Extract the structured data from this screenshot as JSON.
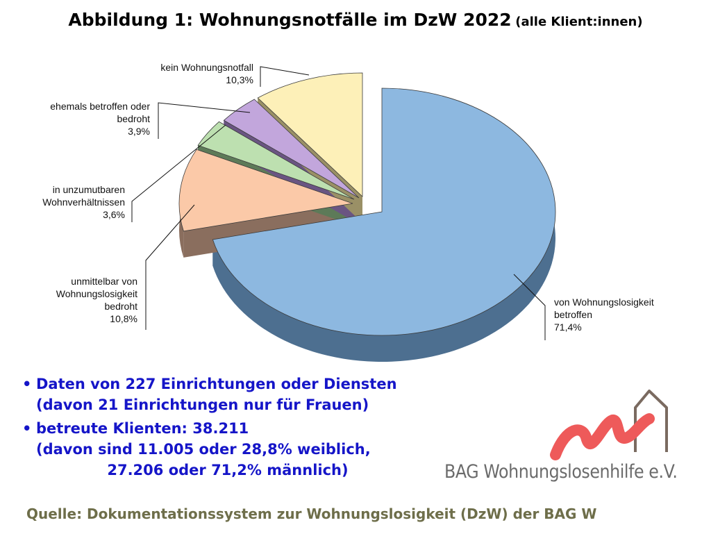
{
  "title": {
    "main": "Abbildung 1:  Wohnungsnotfälle im DzW 2022",
    "sub": "(alle Klient:innen)"
  },
  "chart_data": {
    "type": "pie",
    "slices": [
      {
        "label_lines": [
          "von Wohnungslosigkeit",
          "betroffen",
          "71,4%"
        ],
        "value": 71.4,
        "color": "#8db8e0",
        "side": "#4d6f90"
      },
      {
        "label_lines": [
          "unmittelbar von",
          "Wohnungslosigkeit",
          "bedroht",
          "10,8%"
        ],
        "value": 10.8,
        "color": "#fbc9a8",
        "side": "#8a6e5e"
      },
      {
        "label_lines": [
          "in unzumutbaren",
          "Wohnverhältnissen",
          "3,6%"
        ],
        "value": 3.6,
        "color": "#bde0b0",
        "side": "#5d7a58"
      },
      {
        "label_lines": [
          "ehemals betroffen oder",
          "bedroht",
          "3,9%"
        ],
        "value": 3.9,
        "color": "#c2a6dc",
        "side": "#6a5582"
      },
      {
        "label_lines": [
          "kein Wohnungsnotfall",
          "10,3%"
        ],
        "value": 10.3,
        "color": "#fdf0b8",
        "side": "#9a9066"
      }
    ]
  },
  "bullets": [
    {
      "line1": "Daten von 227 Einrichtungen oder Diensten",
      "line2": "(davon 21 Einrichtungen nur für Frauen)"
    },
    {
      "line1": "betreute Klienten: 38.211",
      "line2": "(davon sind 11.005 oder 28,8% weiblich,",
      "line3": "              27.206 oder 71,2% männlich)"
    }
  ],
  "logo": {
    "text": "BAG Wohnungslosenhilfe e.V."
  },
  "source": "Quelle:  Dokumentationssystem zur Wohnungslosigkeit (DzW) der BAG W",
  "colors": {
    "bullet_text": "#1515c8",
    "source_text": "#6e6e4a",
    "logo_swoosh": "#ee5a5a",
    "logo_house": "#7a6a60"
  }
}
